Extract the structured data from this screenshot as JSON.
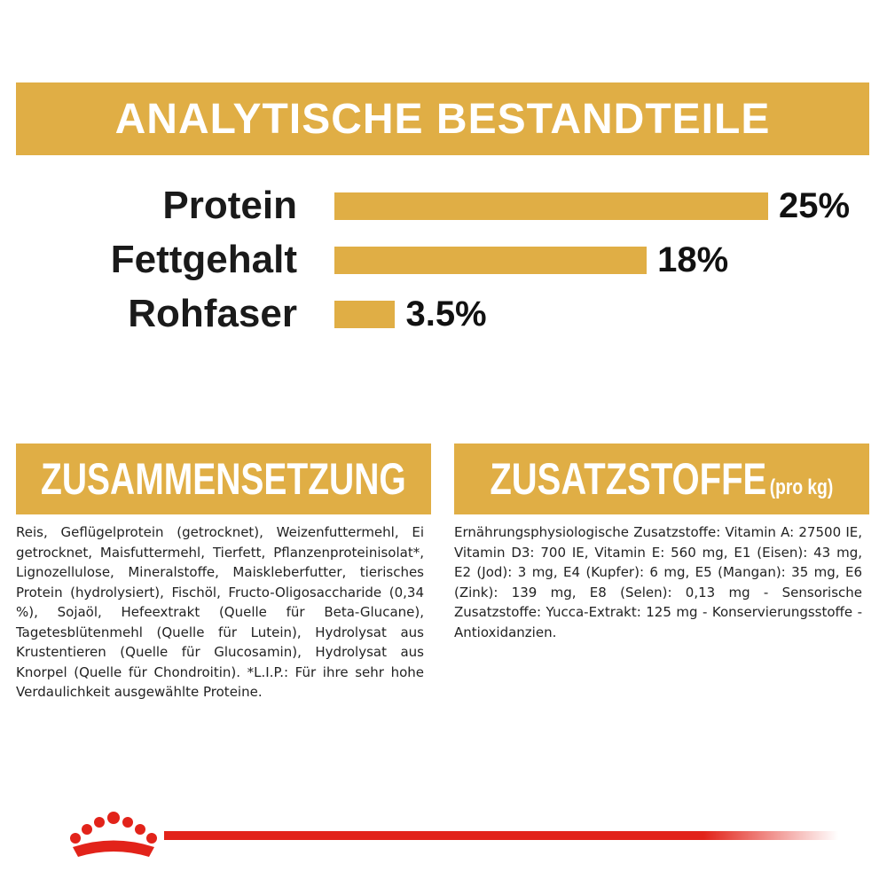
{
  "chart_data": {
    "type": "bar",
    "orientation": "horizontal",
    "title": "ANALYTISCHE BESTANDTEILE",
    "categories": [
      "Protein",
      "Fettgehalt",
      "Rohfaser"
    ],
    "values": [
      25,
      18,
      3.5
    ],
    "value_labels": [
      "25%",
      "18%",
      "3.5%"
    ],
    "color": "#e0ae45"
  },
  "composition": {
    "title": "ZUSAMMENSETZUNG",
    "text": "Reis, Geflügelprotein (getrocknet), Weizenfuttermehl, Ei getrocknet, Maisfuttermehl, Tierfett, Pflanzenproteinisolat*, Lignozellulose, Mineralstoffe, Maiskleberfutter, tierisches Protein (hydrolysiert), Fischöl, Fructo-Oligosaccharide (0,34 %), Sojaöl, Hefeextrakt (Quelle für Beta-Glucane), Tagetesblütenmehl (Quelle für Lutein), Hydrolysat aus Krustentieren (Quelle für Glucosamin), Hydrolysat aus Knorpel (Quelle für Chondroitin). *L.I.P.: Für ihre sehr hohe Verdaulichkeit ausgewählte Proteine."
  },
  "additives": {
    "title": "ZUSATZSTOFFE",
    "title_suffix": "(pro kg)",
    "text": "Ernährungsphysiologische Zusatzstoffe: Vitamin A: 27500 IE, Vitamin D3: 700 IE, Vitamin E: 560 mg, E1 (Eisen): 43 mg, E2 (Jod): 3 mg, E4 (Kupfer): 6 mg, E5 (Mangan): 35 mg, E6 (Zink): 139 mg, E8 (Selen): 0,13 mg - Sensorische Zusatzstoffe: Yucca-Extrakt: 125 mg - Konservierungsstoffe - Antioxidanzien."
  }
}
